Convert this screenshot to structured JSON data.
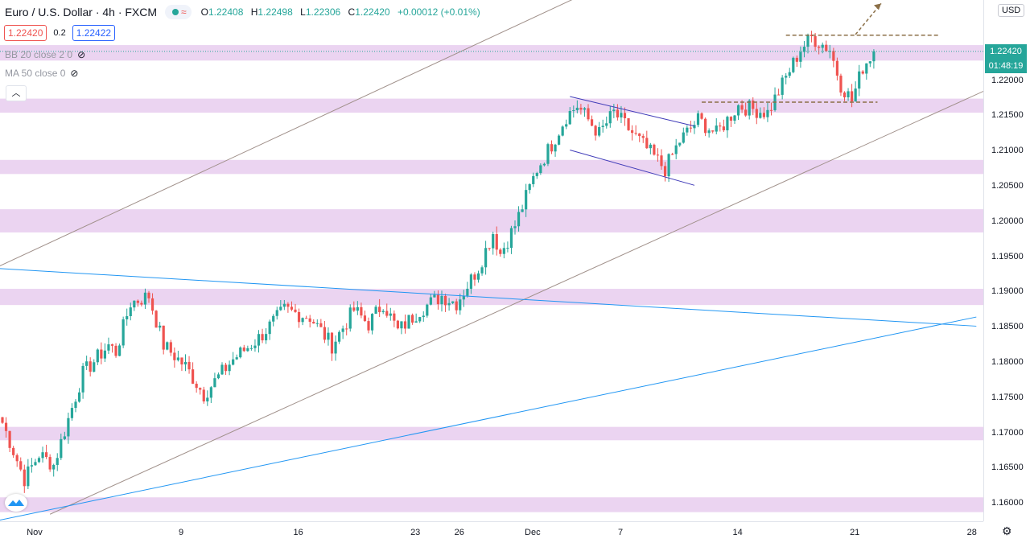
{
  "header": {
    "symbol": "Euro / U.S. Dollar · 4h · FXCM",
    "wave_icon": "wave-icon",
    "ohlc": {
      "o_label": "O",
      "o": "1.22408",
      "h_label": "H",
      "h": "1.22498",
      "l_label": "L",
      "l": "1.22306",
      "c_label": "C",
      "c": "1.22420",
      "change": "+0.00012 (+0.01%)"
    }
  },
  "trade": {
    "sell": "1.22420",
    "spread": "0.2",
    "buy": "1.22422"
  },
  "indicators": [
    {
      "label": "BB 20 close 2 0"
    },
    {
      "label": "MA 50 close 0"
    }
  ],
  "currency": "USD",
  "price_labels": {
    "last": "1.22420",
    "countdown": "01:48:19"
  },
  "colors": {
    "up": "#26a69a",
    "down": "#ef5350",
    "zone": "#e7cdef",
    "blue_line": "#2196f3",
    "channel": "#a0908a",
    "flag": "#3f3ab8",
    "dashed": "#8b6f47"
  },
  "chart_data": {
    "type": "candlestick",
    "symbol": "EURUSD",
    "timeframe": "4h",
    "y_ticks": [
      "1.22000",
      "1.21500",
      "1.21000",
      "1.20500",
      "1.20000",
      "1.19500",
      "1.19000",
      "1.18500",
      "1.18000",
      "1.17500",
      "1.17000",
      "1.16500",
      "1.16000"
    ],
    "y_tick_values": [
      1.22,
      1.215,
      1.21,
      1.205,
      1.2,
      1.195,
      1.19,
      1.185,
      1.18,
      1.175,
      1.17,
      1.165,
      1.16
    ],
    "ylim": [
      1.1575,
      1.2315
    ],
    "x_ticks": [
      "Nov",
      "9",
      "16",
      "23",
      "26",
      "Dec",
      "7",
      "14",
      "21",
      "28"
    ],
    "x_tick_pos": [
      0,
      40,
      72,
      104,
      116,
      136,
      160,
      192,
      224,
      256
    ],
    "last_price": 1.2242,
    "support_resistance_zones": [
      [
        1.2229,
        1.2251
      ],
      [
        1.2155,
        1.2175
      ],
      [
        1.2068,
        1.2088
      ],
      [
        1.1985,
        1.2018
      ],
      [
        1.1882,
        1.1905
      ],
      [
        1.169,
        1.1709
      ],
      [
        1.1588,
        1.1609
      ]
    ],
    "key_points": [
      {
        "x": 0,
        "y": 1.1715
      },
      {
        "x": 6,
        "y": 1.1635
      },
      {
        "x": 10,
        "y": 1.167
      },
      {
        "x": 14,
        "y": 1.1655
      },
      {
        "x": 22,
        "y": 1.1785
      },
      {
        "x": 29,
        "y": 1.1825
      },
      {
        "x": 31,
        "y": 1.1815
      },
      {
        "x": 35,
        "y": 1.1885
      },
      {
        "x": 40,
        "y": 1.1895
      },
      {
        "x": 44,
        "y": 1.1825
      },
      {
        "x": 50,
        "y": 1.1795
      },
      {
        "x": 55,
        "y": 1.1755
      },
      {
        "x": 63,
        "y": 1.1805
      },
      {
        "x": 70,
        "y": 1.1835
      },
      {
        "x": 77,
        "y": 1.1875
      },
      {
        "x": 84,
        "y": 1.1865
      },
      {
        "x": 90,
        "y": 1.1825
      },
      {
        "x": 96,
        "y": 1.1875
      },
      {
        "x": 100,
        "y": 1.1855
      },
      {
        "x": 104,
        "y": 1.1885
      },
      {
        "x": 108,
        "y": 1.1845
      },
      {
        "x": 114,
        "y": 1.1875
      },
      {
        "x": 120,
        "y": 1.1895
      },
      {
        "x": 124,
        "y": 1.1885
      },
      {
        "x": 130,
        "y": 1.1935
      },
      {
        "x": 134,
        "y": 1.1985
      },
      {
        "x": 136,
        "y": 1.1955
      },
      {
        "x": 140,
        "y": 1.1995
      },
      {
        "x": 146,
        "y": 1.2075
      },
      {
        "x": 150,
        "y": 1.211
      },
      {
        "x": 154,
        "y": 1.215
      },
      {
        "x": 157,
        "y": 1.2165
      },
      {
        "x": 163,
        "y": 1.2125
      },
      {
        "x": 167,
        "y": 1.2155
      },
      {
        "x": 174,
        "y": 1.2115
      },
      {
        "x": 181,
        "y": 1.2075
      },
      {
        "x": 185,
        "y": 1.2115
      },
      {
        "x": 190,
        "y": 1.2145
      },
      {
        "x": 195,
        "y": 1.2125
      },
      {
        "x": 201,
        "y": 1.2165
      },
      {
        "x": 209,
        "y": 1.2155
      },
      {
        "x": 213,
        "y": 1.2195
      },
      {
        "x": 218,
        "y": 1.2245
      },
      {
        "x": 221,
        "y": 1.2262
      },
      {
        "x": 226,
        "y": 1.2245
      },
      {
        "x": 229,
        "y": 1.2195
      },
      {
        "x": 232,
        "y": 1.2172
      },
      {
        "x": 235,
        "y": 1.222
      },
      {
        "x": 238,
        "y": 1.2242
      }
    ],
    "drawn_lines": {
      "channel_upper": [
        [
          -10,
          1.1915
        ],
        [
          205,
          1.2435
        ]
      ],
      "channel_lower": [
        [
          13,
          1.1585
        ],
        [
          272,
          1.2195
        ]
      ],
      "blue_descending": [
        [
          -5,
          1.1935
        ],
        [
          266,
          1.1852
        ]
      ],
      "blue_ascending": [
        [
          -5,
          1.1572
        ],
        [
          266,
          1.1865
        ]
      ],
      "flag_upper": [
        [
          155,
          1.2178
        ],
        [
          189,
          1.2136
        ]
      ],
      "flag_lower": [
        [
          155,
          1.2102
        ],
        [
          189,
          1.2052
        ]
      ],
      "dashed_top": [
        [
          214,
          1.2265
        ],
        [
          256,
          1.2265
        ]
      ],
      "dashed_mid": [
        [
          191,
          1.217
        ],
        [
          239,
          1.217
        ]
      ],
      "arrow": [
        [
          233,
          1.2266
        ],
        [
          240,
          1.231
        ]
      ]
    }
  }
}
